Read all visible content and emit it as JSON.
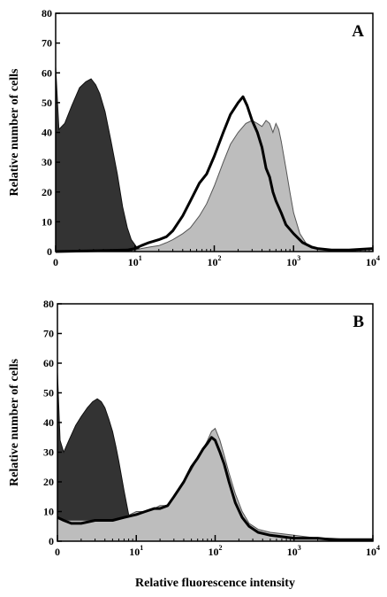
{
  "chart_data": [
    {
      "type": "area",
      "panel_label": "A",
      "ylabel": "Relative number of cells",
      "xlabel": "",
      "xscale": "log",
      "xlim": [
        1,
        10000
      ],
      "ylim": [
        0,
        80
      ],
      "yticks": [
        0,
        10,
        20,
        30,
        40,
        50,
        60,
        70,
        80
      ],
      "xticks": [
        {
          "value": 1,
          "base": "0",
          "exp": ""
        },
        {
          "value": 10,
          "base": "10",
          "exp": "1"
        },
        {
          "value": 100,
          "base": "10",
          "exp": "2"
        },
        {
          "value": 1000,
          "base": "10",
          "exp": "3"
        },
        {
          "value": 10000,
          "base": "10",
          "exp": "4"
        }
      ],
      "grid": false,
      "legend": "none",
      "series": [
        {
          "style": "dark-fill",
          "color": "#333333",
          "x": [
            1,
            1.1,
            1.3,
            1.6,
            2.0,
            2.4,
            2.8,
            3.2,
            3.6,
            4.2,
            5.0,
            6.0,
            7.0,
            8.0,
            9.0,
            10.5,
            12,
            14,
            17
          ],
          "y": [
            62,
            41,
            43,
            49,
            55,
            57,
            58,
            56,
            53,
            47,
            37,
            26,
            15,
            8,
            4,
            1.5,
            0.5,
            0.2,
            0
          ]
        },
        {
          "style": "light-fill",
          "color": "#bdbdbd",
          "x": [
            1,
            8,
            10,
            12,
            15,
            20,
            25,
            30,
            40,
            50,
            65,
            80,
            100,
            130,
            160,
            200,
            250,
            300,
            350,
            400,
            450,
            500,
            550,
            600,
            650,
            700,
            800,
            900,
            1000,
            1200,
            1500,
            2000,
            3000,
            5000,
            7000,
            10000
          ],
          "y": [
            0,
            0.3,
            0.5,
            1,
            1.5,
            2,
            3,
            4,
            6,
            8,
            12,
            16,
            22,
            30,
            36,
            40,
            43,
            44,
            43,
            42,
            44,
            43,
            40,
            43,
            41,
            37,
            28,
            20,
            13,
            6,
            2,
            1,
            0.5,
            0.5,
            0.6,
            1
          ]
        },
        {
          "style": "thick-outline",
          "color": "#000000",
          "x": [
            1,
            8,
            10,
            12,
            15,
            20,
            25,
            30,
            40,
            50,
            65,
            80,
            100,
            130,
            160,
            200,
            230,
            260,
            300,
            350,
            400,
            450,
            500,
            550,
            600,
            700,
            800,
            1000,
            1300,
            1700,
            2000,
            3000,
            5000,
            10000
          ],
          "y": [
            0,
            0.5,
            1,
            2,
            3,
            4,
            5,
            7,
            12,
            17,
            23,
            26,
            32,
            40,
            46,
            50,
            52,
            49,
            44,
            40,
            35,
            28,
            25,
            20,
            17,
            13,
            9,
            6,
            3,
            1.5,
            1,
            0.5,
            0.5,
            1
          ]
        }
      ]
    },
    {
      "type": "area",
      "panel_label": "B",
      "ylabel": "Relative number of cells",
      "xlabel": "Relative fluorescence intensity",
      "xscale": "log",
      "xlim": [
        1,
        10000
      ],
      "ylim": [
        0,
        80
      ],
      "yticks": [
        0,
        10,
        20,
        30,
        40,
        50,
        60,
        70,
        80
      ],
      "xticks": [
        {
          "value": 1,
          "base": "0",
          "exp": ""
        },
        {
          "value": 10,
          "base": "10",
          "exp": "1"
        },
        {
          "value": 100,
          "base": "10",
          "exp": "2"
        },
        {
          "value": 1000,
          "base": "10",
          "exp": "3"
        },
        {
          "value": 10000,
          "base": "10",
          "exp": "4"
        }
      ],
      "grid": false,
      "legend": "none",
      "series": [
        {
          "style": "dark-fill",
          "color": "#333333",
          "x": [
            1,
            1.08,
            1.2,
            1.4,
            1.7,
            2.0,
            2.4,
            2.8,
            3.2,
            3.6,
            4.0,
            4.5,
            5.0,
            5.5,
            6.0,
            7.0,
            8.0,
            9.0,
            10
          ],
          "y": [
            57,
            34,
            30,
            34,
            39,
            42,
            45,
            47,
            48,
            47,
            45,
            41,
            37,
            32,
            27,
            17,
            9,
            4,
            1
          ]
        },
        {
          "style": "light-fill",
          "color": "#bdbdbd",
          "x": [
            1,
            1.2,
            1.5,
            2,
            3,
            4,
            5,
            7,
            10,
            13,
            17,
            20,
            25,
            30,
            40,
            50,
            60,
            70,
            80,
            90,
            100,
            115,
            130,
            150,
            180,
            220,
            270,
            350,
            500,
            1000,
            2000,
            3000,
            5000,
            10000
          ],
          "y": [
            8,
            7,
            7,
            7,
            7,
            7,
            7,
            8,
            10,
            10,
            11,
            12,
            12,
            15,
            20,
            24,
            28,
            31,
            34,
            37,
            38,
            34,
            29,
            23,
            16,
            10,
            6,
            4,
            3,
            2,
            1,
            1,
            0.5,
            0.5
          ]
        },
        {
          "style": "thick-outline",
          "color": "#000000",
          "x": [
            1,
            1.2,
            1.5,
            2,
            3,
            4,
            5,
            7,
            10,
            13,
            17,
            20,
            25,
            30,
            40,
            50,
            60,
            70,
            80,
            90,
            100,
            115,
            130,
            150,
            180,
            220,
            270,
            350,
            500,
            1000,
            2000,
            3000,
            5000,
            10000
          ],
          "y": [
            8,
            7,
            6,
            6,
            7,
            7,
            7,
            8,
            9,
            10,
            11,
            11,
            12,
            15,
            20,
            25,
            28,
            31,
            33,
            35,
            34,
            30,
            26,
            20,
            13,
            8,
            5,
            3,
            2,
            1,
            1,
            0.5,
            0.5,
            0.5
          ]
        }
      ]
    }
  ]
}
